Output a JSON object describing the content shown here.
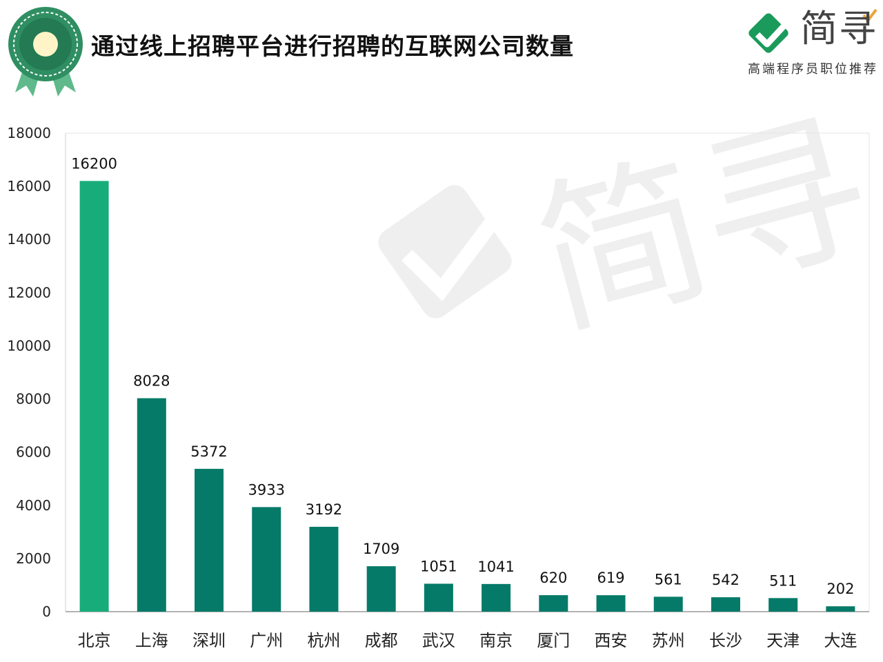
{
  "header": {
    "title": "通过线上招聘平台进行招聘的互联网公司数量",
    "logo_name": "简寻",
    "logo_tagline": "高端程序员职位推荐"
  },
  "colors": {
    "first_bar": "#17ad7a",
    "bar": "#057a68",
    "badge_green": "#2f8f62",
    "logo_green": "#1a9b5b",
    "logo_gold": "#e8a53a"
  },
  "chart_data": {
    "type": "bar",
    "title": "通过线上招聘平台进行招聘的互联网公司数量",
    "xlabel": "",
    "ylabel": "",
    "categories": [
      "北京",
      "上海",
      "深圳",
      "广州",
      "杭州",
      "成都",
      "武汉",
      "南京",
      "厦门",
      "西安",
      "苏州",
      "长沙",
      "天津",
      "大连"
    ],
    "values": [
      16200,
      8028,
      5372,
      3933,
      3192,
      1709,
      1051,
      1041,
      620,
      619,
      561,
      542,
      511,
      202
    ],
    "ylim": [
      0,
      18000
    ],
    "yticks": [
      0,
      2000,
      4000,
      6000,
      8000,
      10000,
      12000,
      14000,
      16000,
      18000
    ],
    "grid": false,
    "legend": "none",
    "data_labels": true
  }
}
